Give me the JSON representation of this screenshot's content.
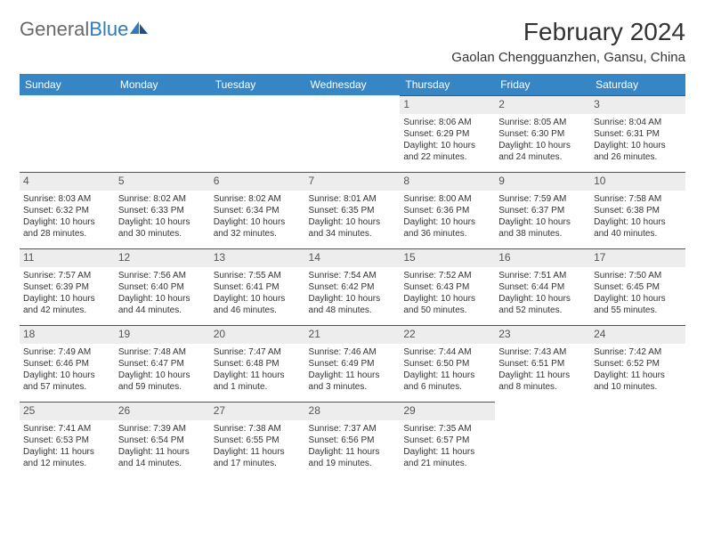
{
  "logo": {
    "text_gray": "General",
    "text_blue": "Blue"
  },
  "title": "February 2024",
  "location": "Gaolan Chengguanzhen, Gansu, China",
  "colors": {
    "header_bg": "#3686c6",
    "header_text": "#ffffff",
    "daynum_bg": "#ededed",
    "daynum_border": "#37568a",
    "logo_gray": "#6a6a6a",
    "logo_blue": "#2f7bbf",
    "text": "#333333",
    "background": "#ffffff"
  },
  "day_labels": [
    "Sunday",
    "Monday",
    "Tuesday",
    "Wednesday",
    "Thursday",
    "Friday",
    "Saturday"
  ],
  "weeks": [
    [
      null,
      null,
      null,
      null,
      {
        "n": "1",
        "sr": "Sunrise: 8:06 AM",
        "ss": "Sunset: 6:29 PM",
        "dl": "Daylight: 10 hours and 22 minutes."
      },
      {
        "n": "2",
        "sr": "Sunrise: 8:05 AM",
        "ss": "Sunset: 6:30 PM",
        "dl": "Daylight: 10 hours and 24 minutes."
      },
      {
        "n": "3",
        "sr": "Sunrise: 8:04 AM",
        "ss": "Sunset: 6:31 PM",
        "dl": "Daylight: 10 hours and 26 minutes."
      }
    ],
    [
      {
        "n": "4",
        "sr": "Sunrise: 8:03 AM",
        "ss": "Sunset: 6:32 PM",
        "dl": "Daylight: 10 hours and 28 minutes."
      },
      {
        "n": "5",
        "sr": "Sunrise: 8:02 AM",
        "ss": "Sunset: 6:33 PM",
        "dl": "Daylight: 10 hours and 30 minutes."
      },
      {
        "n": "6",
        "sr": "Sunrise: 8:02 AM",
        "ss": "Sunset: 6:34 PM",
        "dl": "Daylight: 10 hours and 32 minutes."
      },
      {
        "n": "7",
        "sr": "Sunrise: 8:01 AM",
        "ss": "Sunset: 6:35 PM",
        "dl": "Daylight: 10 hours and 34 minutes."
      },
      {
        "n": "8",
        "sr": "Sunrise: 8:00 AM",
        "ss": "Sunset: 6:36 PM",
        "dl": "Daylight: 10 hours and 36 minutes."
      },
      {
        "n": "9",
        "sr": "Sunrise: 7:59 AM",
        "ss": "Sunset: 6:37 PM",
        "dl": "Daylight: 10 hours and 38 minutes."
      },
      {
        "n": "10",
        "sr": "Sunrise: 7:58 AM",
        "ss": "Sunset: 6:38 PM",
        "dl": "Daylight: 10 hours and 40 minutes."
      }
    ],
    [
      {
        "n": "11",
        "sr": "Sunrise: 7:57 AM",
        "ss": "Sunset: 6:39 PM",
        "dl": "Daylight: 10 hours and 42 minutes."
      },
      {
        "n": "12",
        "sr": "Sunrise: 7:56 AM",
        "ss": "Sunset: 6:40 PM",
        "dl": "Daylight: 10 hours and 44 minutes."
      },
      {
        "n": "13",
        "sr": "Sunrise: 7:55 AM",
        "ss": "Sunset: 6:41 PM",
        "dl": "Daylight: 10 hours and 46 minutes."
      },
      {
        "n": "14",
        "sr": "Sunrise: 7:54 AM",
        "ss": "Sunset: 6:42 PM",
        "dl": "Daylight: 10 hours and 48 minutes."
      },
      {
        "n": "15",
        "sr": "Sunrise: 7:52 AM",
        "ss": "Sunset: 6:43 PM",
        "dl": "Daylight: 10 hours and 50 minutes."
      },
      {
        "n": "16",
        "sr": "Sunrise: 7:51 AM",
        "ss": "Sunset: 6:44 PM",
        "dl": "Daylight: 10 hours and 52 minutes."
      },
      {
        "n": "17",
        "sr": "Sunrise: 7:50 AM",
        "ss": "Sunset: 6:45 PM",
        "dl": "Daylight: 10 hours and 55 minutes."
      }
    ],
    [
      {
        "n": "18",
        "sr": "Sunrise: 7:49 AM",
        "ss": "Sunset: 6:46 PM",
        "dl": "Daylight: 10 hours and 57 minutes."
      },
      {
        "n": "19",
        "sr": "Sunrise: 7:48 AM",
        "ss": "Sunset: 6:47 PM",
        "dl": "Daylight: 10 hours and 59 minutes."
      },
      {
        "n": "20",
        "sr": "Sunrise: 7:47 AM",
        "ss": "Sunset: 6:48 PM",
        "dl": "Daylight: 11 hours and 1 minute."
      },
      {
        "n": "21",
        "sr": "Sunrise: 7:46 AM",
        "ss": "Sunset: 6:49 PM",
        "dl": "Daylight: 11 hours and 3 minutes."
      },
      {
        "n": "22",
        "sr": "Sunrise: 7:44 AM",
        "ss": "Sunset: 6:50 PM",
        "dl": "Daylight: 11 hours and 6 minutes."
      },
      {
        "n": "23",
        "sr": "Sunrise: 7:43 AM",
        "ss": "Sunset: 6:51 PM",
        "dl": "Daylight: 11 hours and 8 minutes."
      },
      {
        "n": "24",
        "sr": "Sunrise: 7:42 AM",
        "ss": "Sunset: 6:52 PM",
        "dl": "Daylight: 11 hours and 10 minutes."
      }
    ],
    [
      {
        "n": "25",
        "sr": "Sunrise: 7:41 AM",
        "ss": "Sunset: 6:53 PM",
        "dl": "Daylight: 11 hours and 12 minutes."
      },
      {
        "n": "26",
        "sr": "Sunrise: 7:39 AM",
        "ss": "Sunset: 6:54 PM",
        "dl": "Daylight: 11 hours and 14 minutes."
      },
      {
        "n": "27",
        "sr": "Sunrise: 7:38 AM",
        "ss": "Sunset: 6:55 PM",
        "dl": "Daylight: 11 hours and 17 minutes."
      },
      {
        "n": "28",
        "sr": "Sunrise: 7:37 AM",
        "ss": "Sunset: 6:56 PM",
        "dl": "Daylight: 11 hours and 19 minutes."
      },
      {
        "n": "29",
        "sr": "Sunrise: 7:35 AM",
        "ss": "Sunset: 6:57 PM",
        "dl": "Daylight: 11 hours and 21 minutes."
      },
      null,
      null
    ]
  ]
}
